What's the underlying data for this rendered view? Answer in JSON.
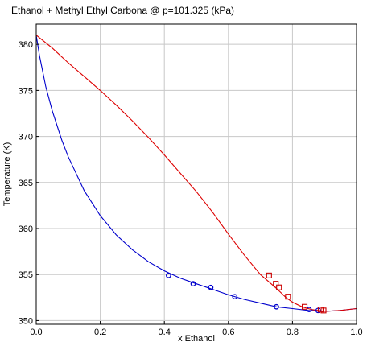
{
  "chart_data": {
    "type": "line",
    "title": "Ethanol + Methyl Ethyl Carbona @ p=101.325 (kPa)",
    "xlabel": "x Ethanol",
    "ylabel": "Temperature (K)",
    "xlim": [
      0.0,
      1.0
    ],
    "ylim": [
      349.6,
      382.2
    ],
    "x_ticks": [
      0.0,
      0.2,
      0.4,
      0.6,
      0.8,
      1.0
    ],
    "x_tick_labels": [
      "0.0",
      "0.2",
      "0.4",
      "0.6",
      "0.8",
      "1.0"
    ],
    "y_ticks": [
      350,
      355,
      360,
      365,
      370,
      375,
      380
    ],
    "y_tick_labels": [
      "350",
      "355",
      "360",
      "365",
      "370",
      "375",
      "380"
    ],
    "grid": true,
    "legend": "none",
    "series": [
      {
        "kind": "line",
        "color": "#0000cc",
        "x": [
          0.0,
          0.01,
          0.03,
          0.05,
          0.08,
          0.1,
          0.15,
          0.2,
          0.25,
          0.3,
          0.35,
          0.4,
          0.45,
          0.5,
          0.55,
          0.6,
          0.65,
          0.7,
          0.75,
          0.8,
          0.85,
          0.88,
          0.9,
          0.95,
          1.0
        ],
        "y": [
          381.0,
          378.8,
          375.4,
          372.8,
          369.6,
          367.8,
          364.1,
          361.4,
          359.3,
          357.7,
          356.4,
          355.4,
          354.6,
          354.0,
          353.4,
          352.8,
          352.3,
          351.9,
          351.5,
          351.3,
          351.1,
          351.05,
          351.0,
          351.1,
          351.3
        ]
      },
      {
        "kind": "line",
        "color": "#dd0000",
        "x": [
          0.0,
          0.05,
          0.1,
          0.15,
          0.2,
          0.25,
          0.3,
          0.35,
          0.4,
          0.45,
          0.5,
          0.55,
          0.6,
          0.65,
          0.7,
          0.72,
          0.75,
          0.78,
          0.8,
          0.83,
          0.86,
          0.9,
          0.95,
          1.0
        ],
        "y": [
          381.0,
          379.6,
          378.0,
          376.5,
          375.0,
          373.4,
          371.7,
          369.9,
          368.0,
          366.0,
          364.0,
          361.8,
          359.4,
          357.1,
          355.0,
          354.4,
          353.5,
          352.5,
          352.0,
          351.5,
          351.2,
          351.0,
          351.1,
          351.3
        ]
      },
      {
        "kind": "markers",
        "marker": "circle",
        "color": "#0000cc",
        "x": [
          0.413,
          0.49,
          0.545,
          0.62,
          0.75,
          0.852,
          0.88
        ],
        "y": [
          354.9,
          354.0,
          353.6,
          352.6,
          351.5,
          351.2,
          351.1
        ]
      },
      {
        "kind": "markers",
        "marker": "square",
        "color": "#cc0000",
        "x": [
          0.727,
          0.748,
          0.758,
          0.786,
          0.838,
          0.888,
          0.897
        ],
        "y": [
          354.9,
          354.0,
          353.6,
          352.6,
          351.5,
          351.2,
          351.1
        ]
      }
    ]
  }
}
